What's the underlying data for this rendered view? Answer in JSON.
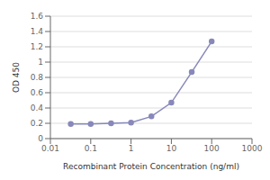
{
  "chart_data": {
    "type": "line",
    "x": [
      0.032,
      0.1,
      0.32,
      1.0,
      3.2,
      10.0,
      32.0,
      100.0
    ],
    "values": [
      0.19,
      0.19,
      0.2,
      0.21,
      0.29,
      0.47,
      0.87,
      1.27
    ],
    "xlim": [
      0.01,
      1000
    ],
    "ylim": [
      0,
      1.6
    ],
    "xticks": [
      0.01,
      0.1,
      1,
      10,
      100,
      1000
    ],
    "yticks": [
      0,
      0.2,
      0.4,
      0.6,
      0.8,
      1,
      1.2,
      1.4,
      1.6
    ],
    "xlabel": "Recombinant Protein Concentration (ng/ml)",
    "ylabel": "OD 450",
    "log": "x",
    "grid": true,
    "color": "#8888bb",
    "marker": "circle"
  }
}
